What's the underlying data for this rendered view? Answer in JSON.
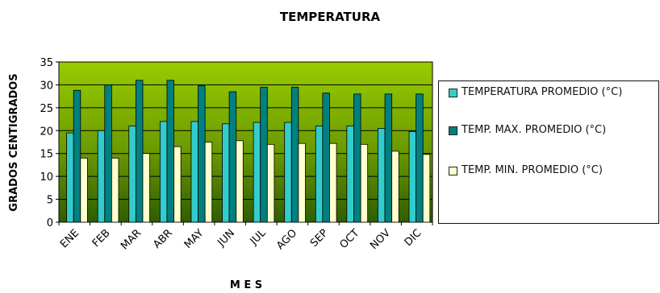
{
  "chart_data": {
    "type": "bar",
    "title": "TEMPERATURA",
    "xlabel": "M E S",
    "ylabel": "GRADOS CENTIGRADOS",
    "ylim": [
      0,
      35
    ],
    "yticks": [
      "0",
      "5",
      "10",
      "15",
      "20",
      "25",
      "30",
      "35"
    ],
    "categories": [
      "ENE",
      "FEB",
      "MAR",
      "ABR",
      "MAY",
      "JUN",
      "JUL",
      "AGO",
      "SEP",
      "OCT",
      "NOV",
      "DIC"
    ],
    "series": [
      {
        "name": "TEMPERATURA PROMEDIO (°C)",
        "color": "#33cccc",
        "values": [
          19.5,
          20.0,
          21.0,
          22.0,
          22.0,
          21.5,
          21.8,
          21.8,
          21.0,
          21.0,
          20.5,
          19.8
        ]
      },
      {
        "name": "TEMP. MAX. PROMEDIO (°C)",
        "color": "#008080",
        "values": [
          28.8,
          30.0,
          31.0,
          31.0,
          29.8,
          28.5,
          29.5,
          29.5,
          28.2,
          28.0,
          28.0,
          28.0
        ]
      },
      {
        "name": "TEMP. MIN. PROMEDIO (°C)",
        "color": "#ffffcc",
        "values": [
          14.0,
          14.0,
          15.0,
          16.5,
          17.5,
          17.8,
          17.0,
          17.2,
          17.2,
          17.0,
          15.5,
          14.8
        ]
      }
    ],
    "grid": true,
    "legend_position": "right",
    "plot_background": "green gradient"
  }
}
